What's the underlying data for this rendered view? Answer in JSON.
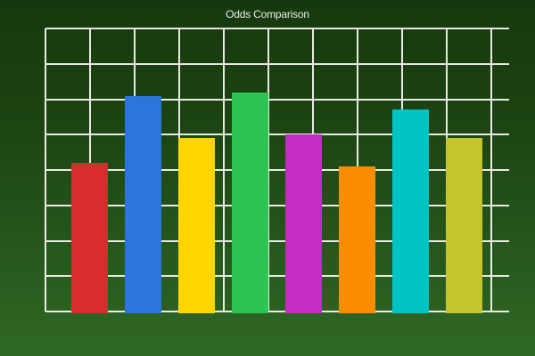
{
  "chart_data": {
    "type": "bar",
    "title": "Odds Comparison",
    "categories": [],
    "values": [
      4.2,
      6.1,
      4.9,
      6.2,
      5.0,
      4.1,
      5.7,
      4.9
    ],
    "bar_colors": [
      "#d92c2c",
      "#2b76db",
      "#fdd500",
      "#2cc452",
      "#c42cc4",
      "#fb8d00",
      "#00c4c4",
      "#c4c42c"
    ],
    "xlabel": "",
    "ylabel": "",
    "ylim": [
      0,
      8
    ],
    "grid": true,
    "grid_rows": 8,
    "grid_cols": 10,
    "legend": false,
    "tick_labels_visible": false
  },
  "colors": {
    "background_top": "#16380e",
    "background_bottom": "#2f6825",
    "grid_line": "#f8f8f2",
    "title_text": "#e9efe6"
  }
}
